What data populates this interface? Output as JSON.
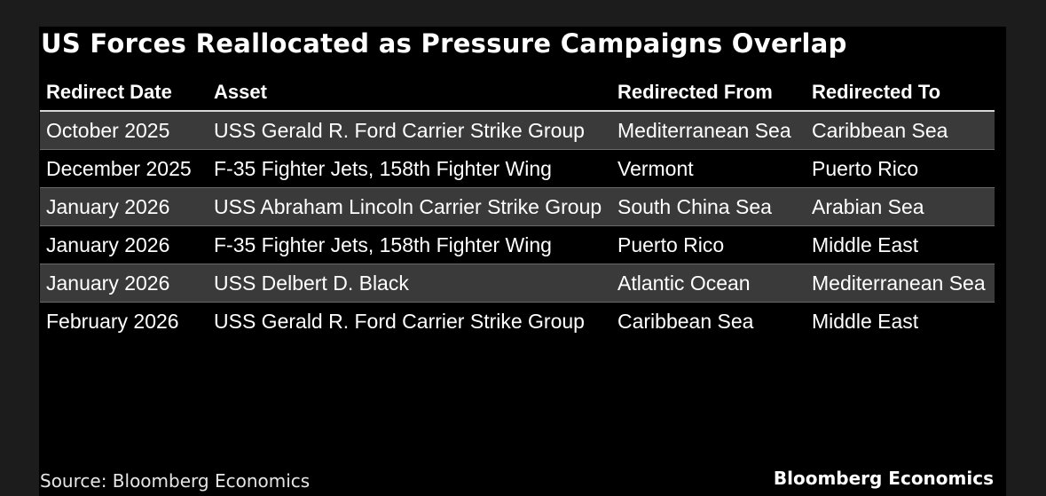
{
  "title": "US Forces Reallocated as Pressure Campaigns Overlap",
  "columns": [
    "Redirect Date",
    "Asset",
    "Redirected From",
    "Redirected To"
  ],
  "rows": [
    [
      "October 2025",
      "USS Gerald R. Ford Carrier Strike Group",
      "Mediterranean Sea",
      "Caribbean Sea"
    ],
    [
      "December 2025",
      "F-35 Fighter Jets, 158th Fighter Wing",
      "Vermont",
      "Puerto Rico"
    ],
    [
      "January 2026",
      "USS Abraham Lincoln Carrier Strike Group",
      "South China Sea",
      "Arabian Sea"
    ],
    [
      "January 2026",
      "F-35 Fighter Jets, 158th Fighter Wing",
      "Puerto Rico",
      "Middle East"
    ],
    [
      "January 2026",
      "USS Delbert D. Black",
      "Atlantic Ocean",
      "Mediterranean Sea"
    ],
    [
      "February 2026",
      "USS Gerald R. Ford Carrier Strike Group",
      "Caribbean Sea",
      "Middle East"
    ]
  ],
  "source": "Source: Bloomberg Economics",
  "brand": "Bloomberg Economics",
  "colors": {
    "background": "#000000",
    "outer": "#1c1c1c",
    "shaded_row": "#3a3a3a",
    "text": "#ffffff"
  }
}
